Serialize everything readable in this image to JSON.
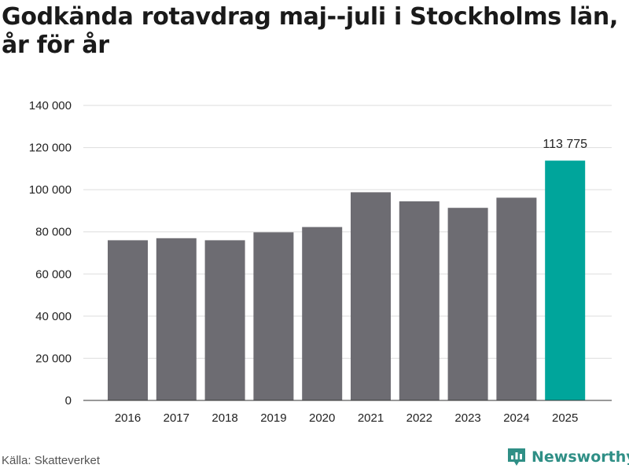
{
  "title": "Godkända rotavdrag maj--juli i Stockholms län, år för år",
  "source": "Källa: Skatteverket",
  "brand": {
    "name": "Newsworthy",
    "icon": "bar-chart-logo-icon",
    "color": "#2f8f86"
  },
  "colors": {
    "bar": "#6d6c72",
    "highlight": "#00a59b",
    "grid": "#dddddd"
  },
  "chart_data": {
    "type": "bar",
    "categories": [
      "2016",
      "2017",
      "2018",
      "2019",
      "2020",
      "2021",
      "2022",
      "2023",
      "2024",
      "2025"
    ],
    "values": [
      76000,
      77000,
      76000,
      79800,
      82300,
      98800,
      94500,
      91400,
      96200,
      113775
    ],
    "highlight_index": 9,
    "data_labels": [
      {
        "index": 9,
        "text": "113 775"
      }
    ],
    "y_ticks": [
      "0",
      "20 000",
      "40 000",
      "60 000",
      "80 000",
      "100 000",
      "120 000",
      "140 000"
    ],
    "y_tick_values": [
      0,
      20000,
      40000,
      60000,
      80000,
      100000,
      120000,
      140000
    ],
    "ylim": [
      0,
      140000
    ],
    "grid": true,
    "xlabel": "",
    "ylabel": ""
  }
}
